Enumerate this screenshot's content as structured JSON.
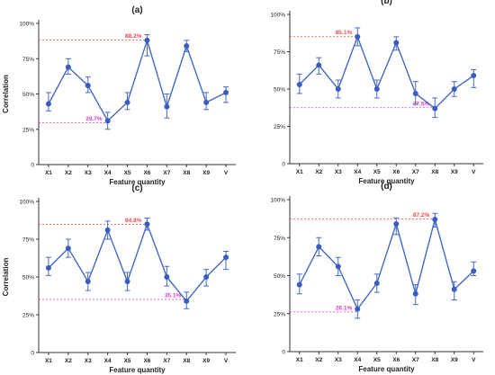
{
  "colors": {
    "line": "#4468c4",
    "marker": "#3a5dbd",
    "max_ref": "#f04a4a",
    "min_ref": "#d63cc8",
    "axis": "#333333",
    "text": "#222222"
  },
  "chart_data": [
    {
      "type": "line",
      "panel": "(a)",
      "categories": [
        "X1",
        "X2",
        "X3",
        "X4",
        "X5",
        "X6",
        "X7",
        "X8",
        "X9",
        "V"
      ],
      "series": [
        {
          "values": [
            43,
            69,
            56,
            31,
            44,
            88,
            41,
            84,
            44,
            51
          ],
          "error_low": [
            38,
            64,
            51,
            25,
            39,
            77,
            33,
            80,
            39,
            44
          ],
          "error_high": [
            51,
            75,
            62,
            37,
            51,
            92,
            50,
            88,
            51,
            55
          ]
        }
      ],
      "xlabel": "Feature quantity",
      "ylabel": "Correlation",
      "yticks": [
        "0",
        "25%",
        "50%",
        "75%",
        "100%"
      ],
      "ylim": [
        0,
        100
      ],
      "reference_lines": [
        {
          "kind": "max",
          "value": 88.2,
          "label": "88.2%"
        },
        {
          "kind": "min",
          "value": 29.7,
          "label": "29.7%"
        }
      ]
    },
    {
      "type": "line",
      "panel": "(b)",
      "categories": [
        "X1",
        "X2",
        "X3",
        "X4",
        "X5",
        "X6",
        "X7",
        "X8",
        "X9",
        "V"
      ],
      "series": [
        {
          "values": [
            53,
            66,
            50,
            85,
            50,
            81,
            47,
            37,
            50,
            59
          ],
          "error_low": [
            47,
            60,
            44,
            79,
            44,
            76,
            40,
            31,
            45,
            51
          ],
          "error_high": [
            60,
            71,
            56,
            91,
            56,
            85,
            55,
            44,
            55,
            63
          ]
        }
      ],
      "xlabel": "Feature quantity",
      "ylabel": "",
      "yticks": [
        "0",
        "25%",
        "50%",
        "75%",
        "100%"
      ],
      "ylim": [
        0,
        100
      ],
      "reference_lines": [
        {
          "kind": "max",
          "value": 85.1,
          "label": "85.1%"
        },
        {
          "kind": "min",
          "value": 37.5,
          "label": "37.5%"
        }
      ]
    },
    {
      "type": "line",
      "panel": "(c)",
      "categories": [
        "X1",
        "X2",
        "X3",
        "X4",
        "X5",
        "X6",
        "X7",
        "X8",
        "X9",
        "V"
      ],
      "series": [
        {
          "values": [
            56,
            69,
            47,
            81,
            47,
            85,
            50,
            34,
            50,
            63
          ],
          "error_low": [
            51,
            63,
            41,
            75,
            41,
            81,
            44,
            29,
            44,
            55
          ],
          "error_high": [
            63,
            75,
            53,
            87,
            53,
            89,
            57,
            40,
            55,
            67
          ]
        }
      ],
      "xlabel": "Feature quantity",
      "ylabel": "Correlation",
      "yticks": [
        "0",
        "25%",
        "50%",
        "75%",
        "100%"
      ],
      "ylim": [
        0,
        100
      ],
      "reference_lines": [
        {
          "kind": "max",
          "value": 84.8,
          "label": "84.8%"
        },
        {
          "kind": "min",
          "value": 35.1,
          "label": "35.1%"
        }
      ]
    },
    {
      "type": "line",
      "panel": "(d)",
      "categories": [
        "X1",
        "X2",
        "X3",
        "X4",
        "X5",
        "X6",
        "X7",
        "X8",
        "X9",
        "V"
      ],
      "series": [
        {
          "values": [
            44,
            69,
            56,
            28,
            45,
            84,
            38,
            87,
            41,
            53
          ],
          "error_low": [
            38,
            63,
            50,
            22,
            39,
            77,
            31,
            82,
            34,
            50
          ],
          "error_high": [
            51,
            75,
            62,
            34,
            51,
            88,
            44,
            91,
            46,
            59
          ]
        }
      ],
      "xlabel": "Feature quantity",
      "ylabel": "",
      "yticks": [
        "0",
        "25%",
        "50%",
        "75%",
        "100%"
      ],
      "ylim": [
        0,
        100
      ],
      "reference_lines": [
        {
          "kind": "max",
          "value": 87.2,
          "label": "87.2%"
        },
        {
          "kind": "min",
          "value": 26.1,
          "label": "26.1%"
        }
      ]
    }
  ]
}
